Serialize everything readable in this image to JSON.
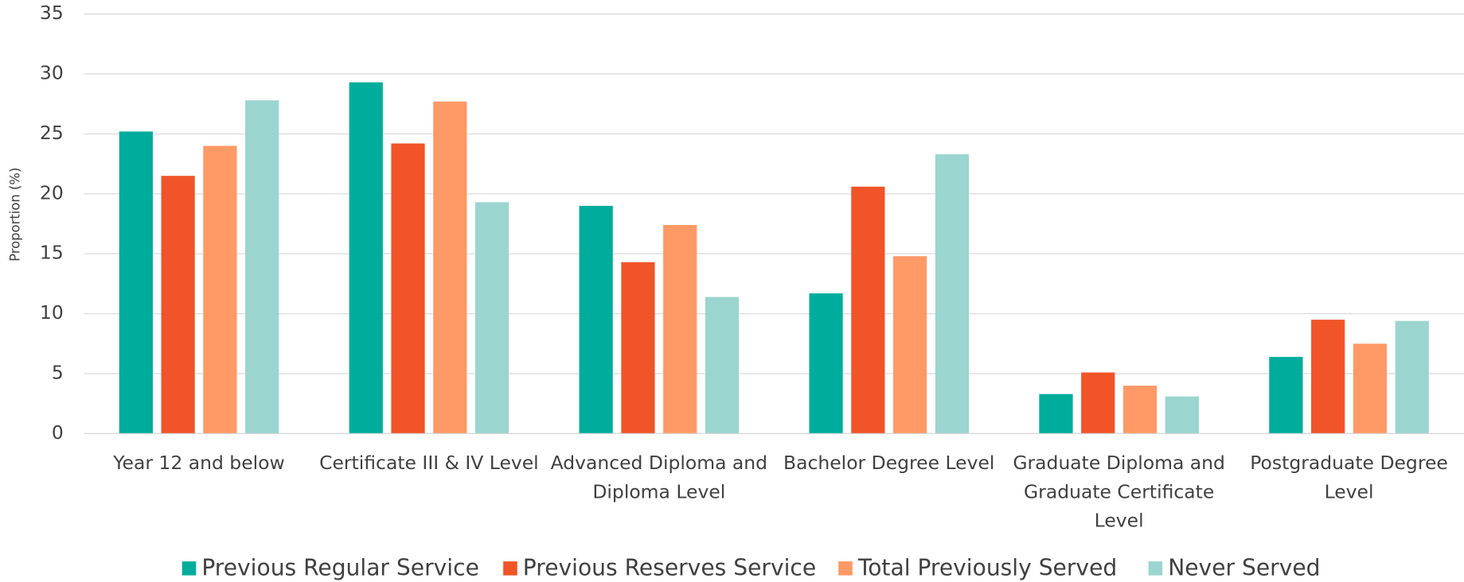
{
  "chart_data": {
    "type": "bar",
    "y_label": "Proportion (%)",
    "categories": [
      "Year 12 and below",
      "Certificate III & IV Level",
      "Advanced Diploma and Diploma Level",
      "Bachelor Degree Level",
      "Graduate Diploma and Graduate Certificate Level",
      "Postgraduate Degree Level"
    ],
    "series": [
      {
        "name": "Previous Regular Service",
        "color": "#00AC9B",
        "values": [
          25.2,
          29.3,
          19.0,
          11.7,
          3.3,
          6.4
        ]
      },
      {
        "name": "Previous Reserves Service",
        "color": "#F05428",
        "values": [
          21.5,
          24.2,
          14.3,
          20.6,
          5.1,
          9.5
        ]
      },
      {
        "name": "Total Previously Served",
        "color": "#FF9966",
        "values": [
          24.0,
          27.7,
          17.4,
          14.8,
          4.0,
          7.5
        ]
      },
      {
        "name": "Never Served",
        "color": "#9BD5CF",
        "values": [
          27.8,
          19.3,
          11.4,
          23.3,
          3.1,
          9.4
        ]
      }
    ],
    "ylim": [
      0,
      35
    ],
    "yticks": [
      0,
      5,
      10,
      15,
      20,
      25,
      30,
      35
    ],
    "grid": true,
    "legend": "bottom"
  }
}
